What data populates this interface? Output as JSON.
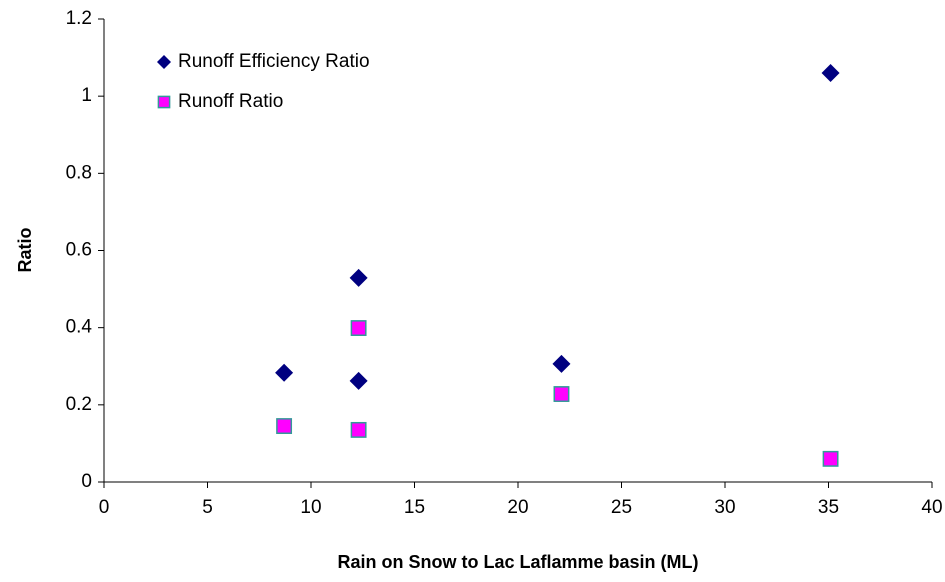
{
  "chart_data": {
    "type": "scatter",
    "xlabel": "Rain on Snow to Lac Laflamme basin (ML)",
    "ylabel": "Ratio",
    "x": [
      8.7,
      12.3,
      12.3,
      22.1,
      35.1
    ],
    "series": [
      {
        "name": "Runoff Efficiency Ratio",
        "color": "#000080",
        "marker": "diamond",
        "values": [
          0.283,
          0.529,
          0.262,
          0.306,
          1.06
        ]
      },
      {
        "name": "Runoff Ratio",
        "color": "#ff00ff",
        "marker": "square",
        "values": [
          0.145,
          0.399,
          0.135,
          0.228,
          0.06
        ]
      }
    ],
    "xlim": [
      0,
      40
    ],
    "xticks": [
      0,
      5,
      10,
      15,
      20,
      25,
      30,
      35,
      40
    ],
    "ylim": [
      0,
      1.2
    ],
    "yticks": [
      0,
      0.2,
      0.4,
      0.6,
      0.8,
      1,
      1.2
    ],
    "grid": false,
    "legend": "upper left"
  }
}
